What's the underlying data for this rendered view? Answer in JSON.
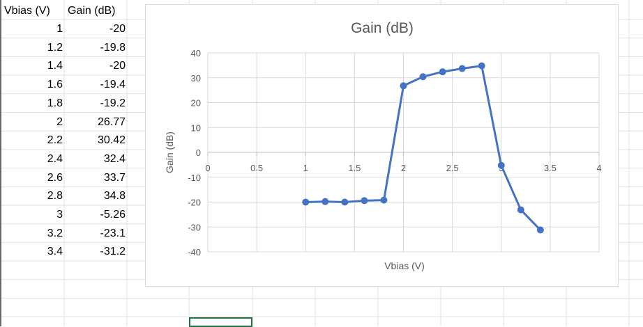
{
  "sheet": {
    "headers": [
      "Vbias (V)",
      "Gain (dB)"
    ],
    "rows": [
      [
        "1",
        "-20"
      ],
      [
        "1.2",
        "-19.8"
      ],
      [
        "1.4",
        "-20"
      ],
      [
        "1.6",
        "-19.4"
      ],
      [
        "1.8",
        "-19.2"
      ],
      [
        "2",
        "26.77"
      ],
      [
        "2.2",
        "30.42"
      ],
      [
        "2.4",
        "32.4"
      ],
      [
        "2.6",
        "33.7"
      ],
      [
        "2.8",
        "34.8"
      ],
      [
        "3",
        "-5.26"
      ],
      [
        "3.2",
        "-23.1"
      ],
      [
        "3.4",
        "-31.2"
      ]
    ]
  },
  "chart_data": {
    "type": "scatter",
    "title": "Gain (dB)",
    "xlabel": "Vbias (V)",
    "ylabel": "Gain (dB)",
    "x": [
      1,
      1.2,
      1.4,
      1.6,
      1.8,
      2,
      2.2,
      2.4,
      2.6,
      2.8,
      3,
      3.2,
      3.4
    ],
    "series": [
      {
        "values": [
          -20,
          -19.8,
          -20,
          -19.4,
          -19.2,
          26.77,
          30.42,
          32.4,
          33.7,
          34.8,
          -5.26,
          -23.1,
          -31.2
        ]
      }
    ],
    "xlim": [
      0,
      4
    ],
    "ylim": [
      -40,
      40
    ],
    "xticks": [
      0,
      0.5,
      1,
      1.5,
      2,
      2.5,
      3,
      3.5,
      4
    ],
    "yticks": [
      40,
      30,
      20,
      10,
      0,
      -10,
      -20,
      -30,
      -40
    ],
    "xtick_labels": [
      "0",
      "0.5",
      "1",
      "1.5",
      "2",
      "2.5",
      "3",
      "3.5",
      "4"
    ],
    "ytick_labels": [
      "40",
      "30",
      "20",
      "10",
      "0",
      "-10",
      "-20",
      "-30",
      "-40"
    ],
    "grid": true,
    "legend": "none",
    "series_color": "#4472c4",
    "connected": true
  },
  "colors": {
    "gridline": "#d9d9d9",
    "sheet_grid": "#e1e1e1",
    "selection": "#217346"
  }
}
